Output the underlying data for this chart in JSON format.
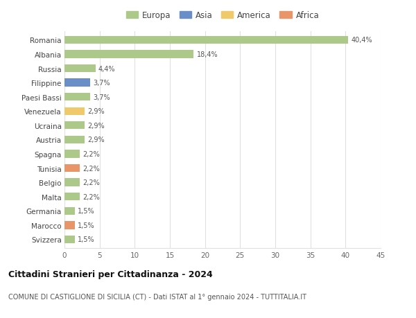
{
  "countries": [
    "Romania",
    "Albania",
    "Russia",
    "Filippine",
    "Paesi Bassi",
    "Venezuela",
    "Ucraina",
    "Austria",
    "Spagna",
    "Tunisia",
    "Belgio",
    "Malta",
    "Germania",
    "Marocco",
    "Svizzera"
  ],
  "values": [
    40.4,
    18.4,
    4.4,
    3.7,
    3.7,
    2.9,
    2.9,
    2.9,
    2.2,
    2.2,
    2.2,
    2.2,
    1.5,
    1.5,
    1.5
  ],
  "labels": [
    "40,4%",
    "18,4%",
    "4,4%",
    "3,7%",
    "3,7%",
    "2,9%",
    "2,9%",
    "2,9%",
    "2,2%",
    "2,2%",
    "2,2%",
    "2,2%",
    "1,5%",
    "1,5%",
    "1,5%"
  ],
  "continents": [
    "Europa",
    "Europa",
    "Europa",
    "Asia",
    "Europa",
    "America",
    "Europa",
    "Europa",
    "Europa",
    "Africa",
    "Europa",
    "Europa",
    "Europa",
    "Africa",
    "Europa"
  ],
  "continent_colors": {
    "Europa": "#adc98a",
    "Asia": "#6a8fc8",
    "America": "#f0c96a",
    "Africa": "#e8956a"
  },
  "legend_order": [
    "Europa",
    "Asia",
    "America",
    "Africa"
  ],
  "title": "Cittadini Stranieri per Cittadinanza - 2024",
  "subtitle": "COMUNE DI CASTIGLIONE DI SICILIA (CT) - Dati ISTAT al 1° gennaio 2024 - TUTTITALIA.IT",
  "xlim": [
    0,
    45
  ],
  "xticks": [
    0,
    5,
    10,
    15,
    20,
    25,
    30,
    35,
    40,
    45
  ],
  "background_color": "#ffffff",
  "grid_color": "#e0e0e0",
  "bar_height": 0.55
}
